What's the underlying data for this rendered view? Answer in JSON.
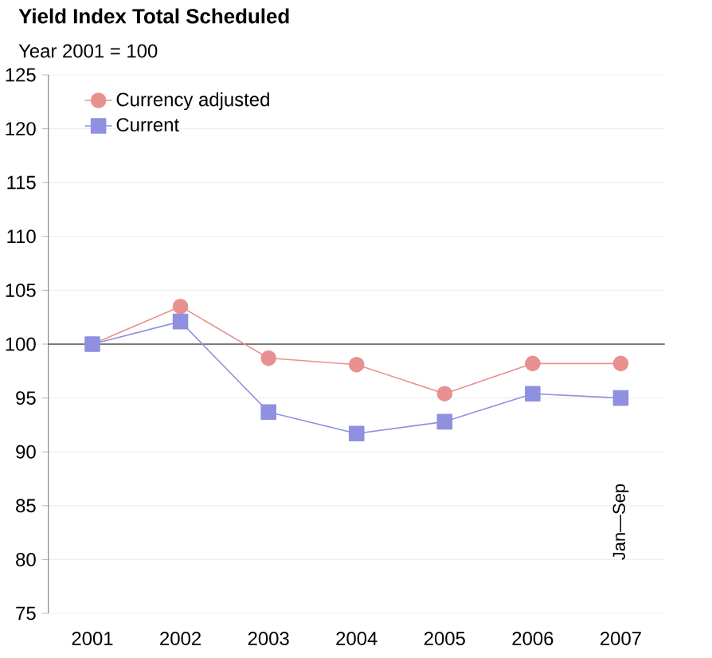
{
  "chart_data": {
    "type": "line",
    "title": "Yield Index Total Scheduled",
    "subtitle": "Year 2001 = 100",
    "categories": [
      "2001",
      "2002",
      "2003",
      "2004",
      "2005",
      "2006",
      "2007"
    ],
    "series": [
      {
        "name": "Currency adjusted",
        "color": "#e89090",
        "marker": "circle",
        "values": [
          100,
          103.5,
          98.7,
          98.1,
          95.4,
          98.2,
          98.2
        ]
      },
      {
        "name": "Current",
        "color": "#9090e0",
        "marker": "square",
        "values": [
          100,
          102.1,
          93.7,
          91.7,
          92.8,
          95.4,
          95.0
        ]
      }
    ],
    "ylim": [
      75,
      125
    ],
    "yticks": [
      75,
      80,
      85,
      90,
      95,
      100,
      105,
      110,
      115,
      120,
      125
    ],
    "grid": "y",
    "legend": "top left",
    "line_style": "solid",
    "ref_lines": [
      {
        "axis": "y",
        "value": 100,
        "color": "#000000"
      }
    ],
    "annotations": [
      "Jan—Sep"
    ]
  }
}
